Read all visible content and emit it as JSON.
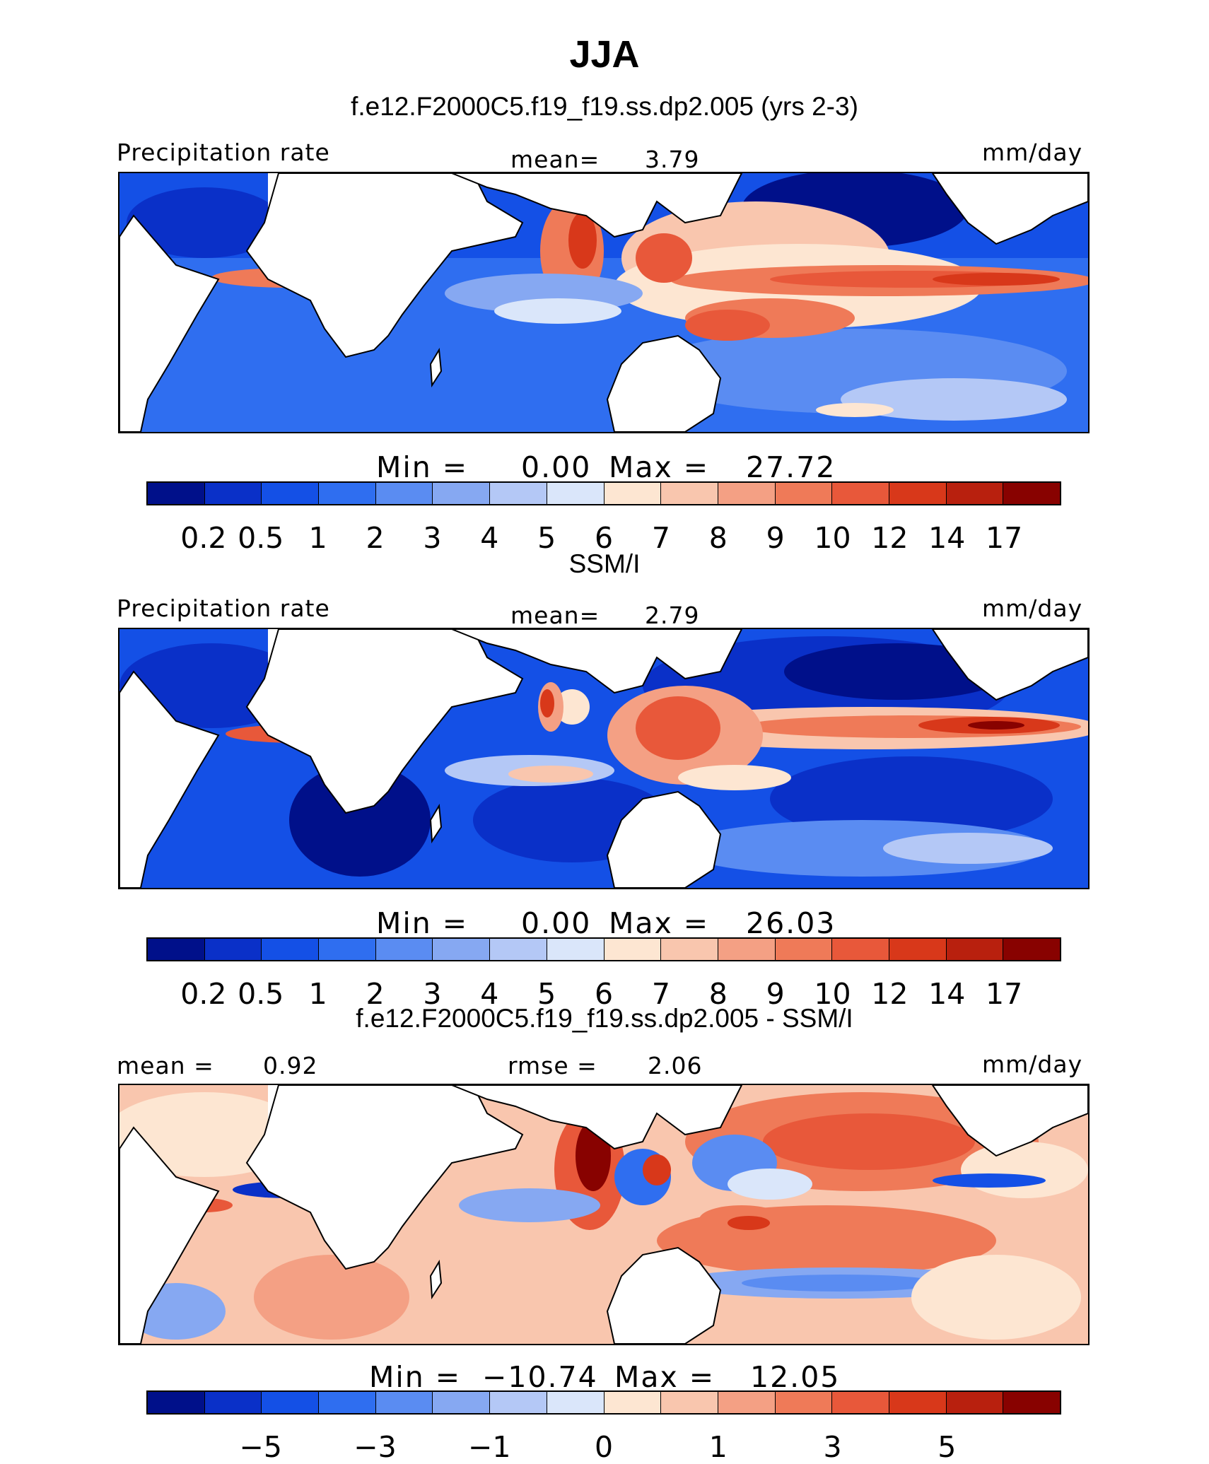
{
  "title": "JJA",
  "colors": {
    "absolute_scale": [
      "#00108a",
      "#0a30c8",
      "#1450e6",
      "#2f6ef0",
      "#5a8cf2",
      "#86a8f2",
      "#b4c8f6",
      "#dae6fa",
      "#fde6d2",
      "#f9c6ae",
      "#f4a084",
      "#ef7a58",
      "#e8583a",
      "#d8381a",
      "#b8200e",
      "#880200"
    ],
    "diff_scale": [
      "#00108a",
      "#0a30c8",
      "#1450e6",
      "#2f6ef0",
      "#5a8cf2",
      "#86a8f2",
      "#b4c8f6",
      "#dae6fa",
      "#fde6d2",
      "#f9c6ae",
      "#f4a084",
      "#ef7a58",
      "#e8583a",
      "#d8381a",
      "#b8200e",
      "#880200"
    ]
  },
  "chart_data": [
    {
      "type": "heatmap",
      "title": "f.e12.F2000C5.f19_f19.ss.dp2.005 (yrs 2-3)",
      "left_label": "Precipitation rate",
      "center_label": "mean=",
      "center_value": "3.79",
      "units": "mm/day",
      "min_label": "Min  =",
      "min_value": "0.00",
      "max_label": "Max  =",
      "max_value": "27.72",
      "colorbar_ticks": [
        "0.2",
        "0.5",
        "1",
        "2",
        "3",
        "4",
        "5",
        "6",
        "7",
        "8",
        "9",
        "10",
        "12",
        "14",
        "17"
      ]
    },
    {
      "type": "heatmap",
      "title": "SSM/I",
      "left_label": "Precipitation rate",
      "center_label": "mean=",
      "center_value": "2.79",
      "units": "mm/day",
      "min_label": "Min  =",
      "min_value": "0.00",
      "max_label": "Max  =",
      "max_value": "26.03",
      "colorbar_ticks": [
        "0.2",
        "0.5",
        "1",
        "2",
        "3",
        "4",
        "5",
        "6",
        "7",
        "8",
        "9",
        "10",
        "12",
        "14",
        "17"
      ]
    },
    {
      "type": "heatmap",
      "title": "f.e12.F2000C5.f19_f19.ss.dp2.005 - SSM/I",
      "left_label": "mean  =",
      "left_value": "0.92",
      "center_label": "rmse  =",
      "center_value": "2.06",
      "units": "mm/day",
      "min_label": "Min  =",
      "min_value": "−10.74",
      "max_label": "Max  =",
      "max_value": "12.05",
      "colorbar_ticks": [
        "−5",
        "−3",
        "−1",
        "0",
        "1",
        "3",
        "5"
      ]
    }
  ]
}
